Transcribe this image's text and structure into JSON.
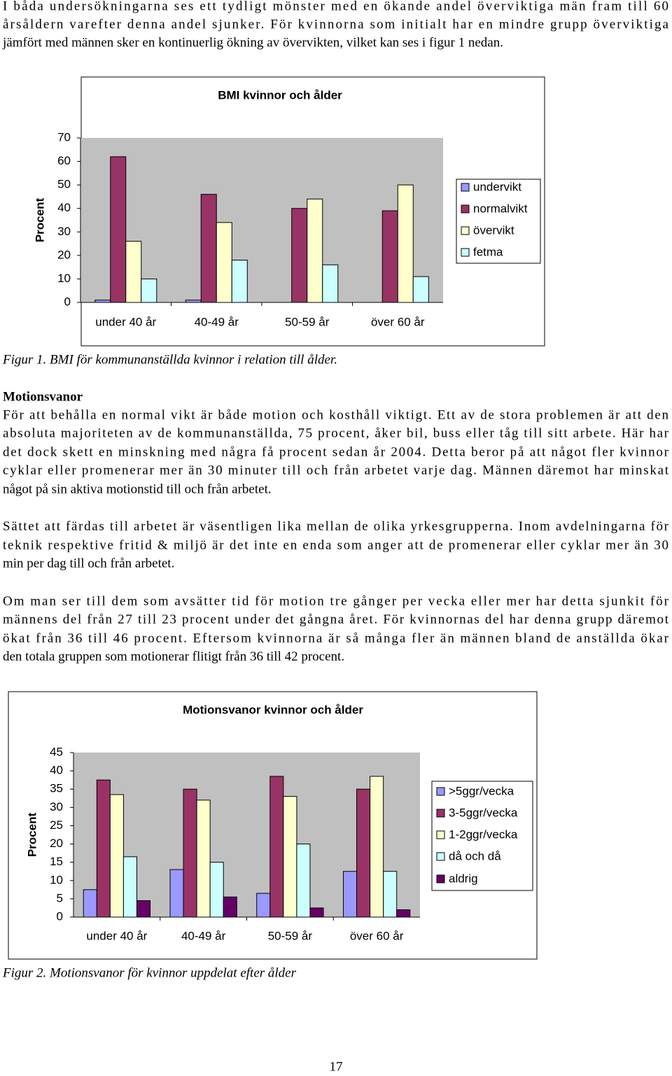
{
  "intro": [
    "I båda undersökningarna ses ett tydligt mönster med en ökande andel överviktiga män fram till 60",
    "årsåldern varefter denna andel sjunker. För kvinnorna som initialt har en mindre grupp överviktiga",
    "jämfört med männen sker en kontinuerlig ökning av övervikten, vilket kan ses i figur 1 nedan."
  ],
  "figure_1_caption": "Figur 1. BMI för kommunanställda kvinnor i relation till ålder.",
  "section_heading": "Motionsvanor",
  "paragraphs": [
    [
      "För att behålla en normal vikt är både motion och kosthåll viktigt. Ett av de stora problemen är att den",
      "absoluta majoriteten av de kommunanställda, 75 procent, åker bil, buss eller tåg till sitt arbete. Här har",
      "det dock skett en minskning med några få procent sedan år 2004. Detta beror på att något fler kvinnor",
      "cyklar eller promenerar mer än 30 minuter till och från arbetet varje dag. Männen däremot har minskat",
      "något på sin aktiva motionstid till och från arbetet."
    ],
    [
      "Sättet att färdas till arbetet är väsentligen lika mellan de olika yrkesgrupperna. Inom avdelningarna för",
      "teknik respektive fritid & miljö är det inte en enda som anger att de promenerar eller cyklar mer än 30",
      "min per dag till och från arbetet."
    ],
    [
      "Om man ser till dem som avsätter tid för motion tre gånger per vecka eller mer har detta sjunkit för",
      "männens del från 27 till 23 procent under det gångna året. För kvinnornas del har denna grupp däremot",
      "ökat från 36 till 46 procent. Eftersom kvinnorna är så många fler än männen bland de anställda ökar",
      "den totala gruppen som motionerar flitigt från 36 till 42 procent."
    ]
  ],
  "figure_2_caption": "Figur 2. Motionsvanor för kvinnor uppdelat efter ålder",
  "page_number": "17",
  "chart_data": [
    {
      "type": "bar",
      "title": "BMI kvinnor och ålder",
      "y_label": "Procent",
      "categories": [
        "under 40 år",
        "40-49 år",
        "50-59 år",
        "över 60 år"
      ],
      "series": [
        {
          "name": "undervikt",
          "color": "#9999ff",
          "values": [
            1,
            1,
            0,
            0
          ]
        },
        {
          "name": "normalvikt",
          "color": "#993366",
          "values": [
            62,
            46,
            40,
            39
          ]
        },
        {
          "name": "övervikt",
          "color": "#ffffcc",
          "values": [
            26,
            34,
            44,
            50
          ]
        },
        {
          "name": "fetma",
          "color": "#ccffff",
          "values": [
            10,
            18,
            16,
            11
          ]
        }
      ],
      "ylim": [
        0,
        70
      ],
      "yticks": [
        0,
        10,
        20,
        30,
        40,
        50,
        60,
        70
      ],
      "legend": "right"
    },
    {
      "type": "bar",
      "title": "Motionsvanor kvinnor och ålder",
      "y_label": "Procent",
      "categories": [
        "under 40 år",
        "40-49 år",
        "50-59 år",
        "över 60 år"
      ],
      "series": [
        {
          "name": ">5ggr/vecka",
          "color": "#9999ff",
          "values": [
            7.5,
            13,
            6.5,
            12.5
          ]
        },
        {
          "name": "3-5ggr/vecka",
          "color": "#993366",
          "values": [
            37.5,
            35,
            38.5,
            35
          ]
        },
        {
          "name": "1-2ggr/vecka",
          "color": "#ffffcc",
          "values": [
            33.5,
            32,
            33,
            38.5
          ]
        },
        {
          "name": "då och då",
          "color": "#ccffff",
          "values": [
            16.5,
            15,
            20,
            12.5
          ]
        },
        {
          "name": "aldrig",
          "color": "#660066",
          "values": [
            4.5,
            5.5,
            2.5,
            2
          ]
        }
      ],
      "ylim": [
        0,
        45
      ],
      "yticks": [
        0,
        5,
        10,
        15,
        20,
        25,
        30,
        35,
        40,
        45
      ],
      "legend": "right"
    }
  ]
}
